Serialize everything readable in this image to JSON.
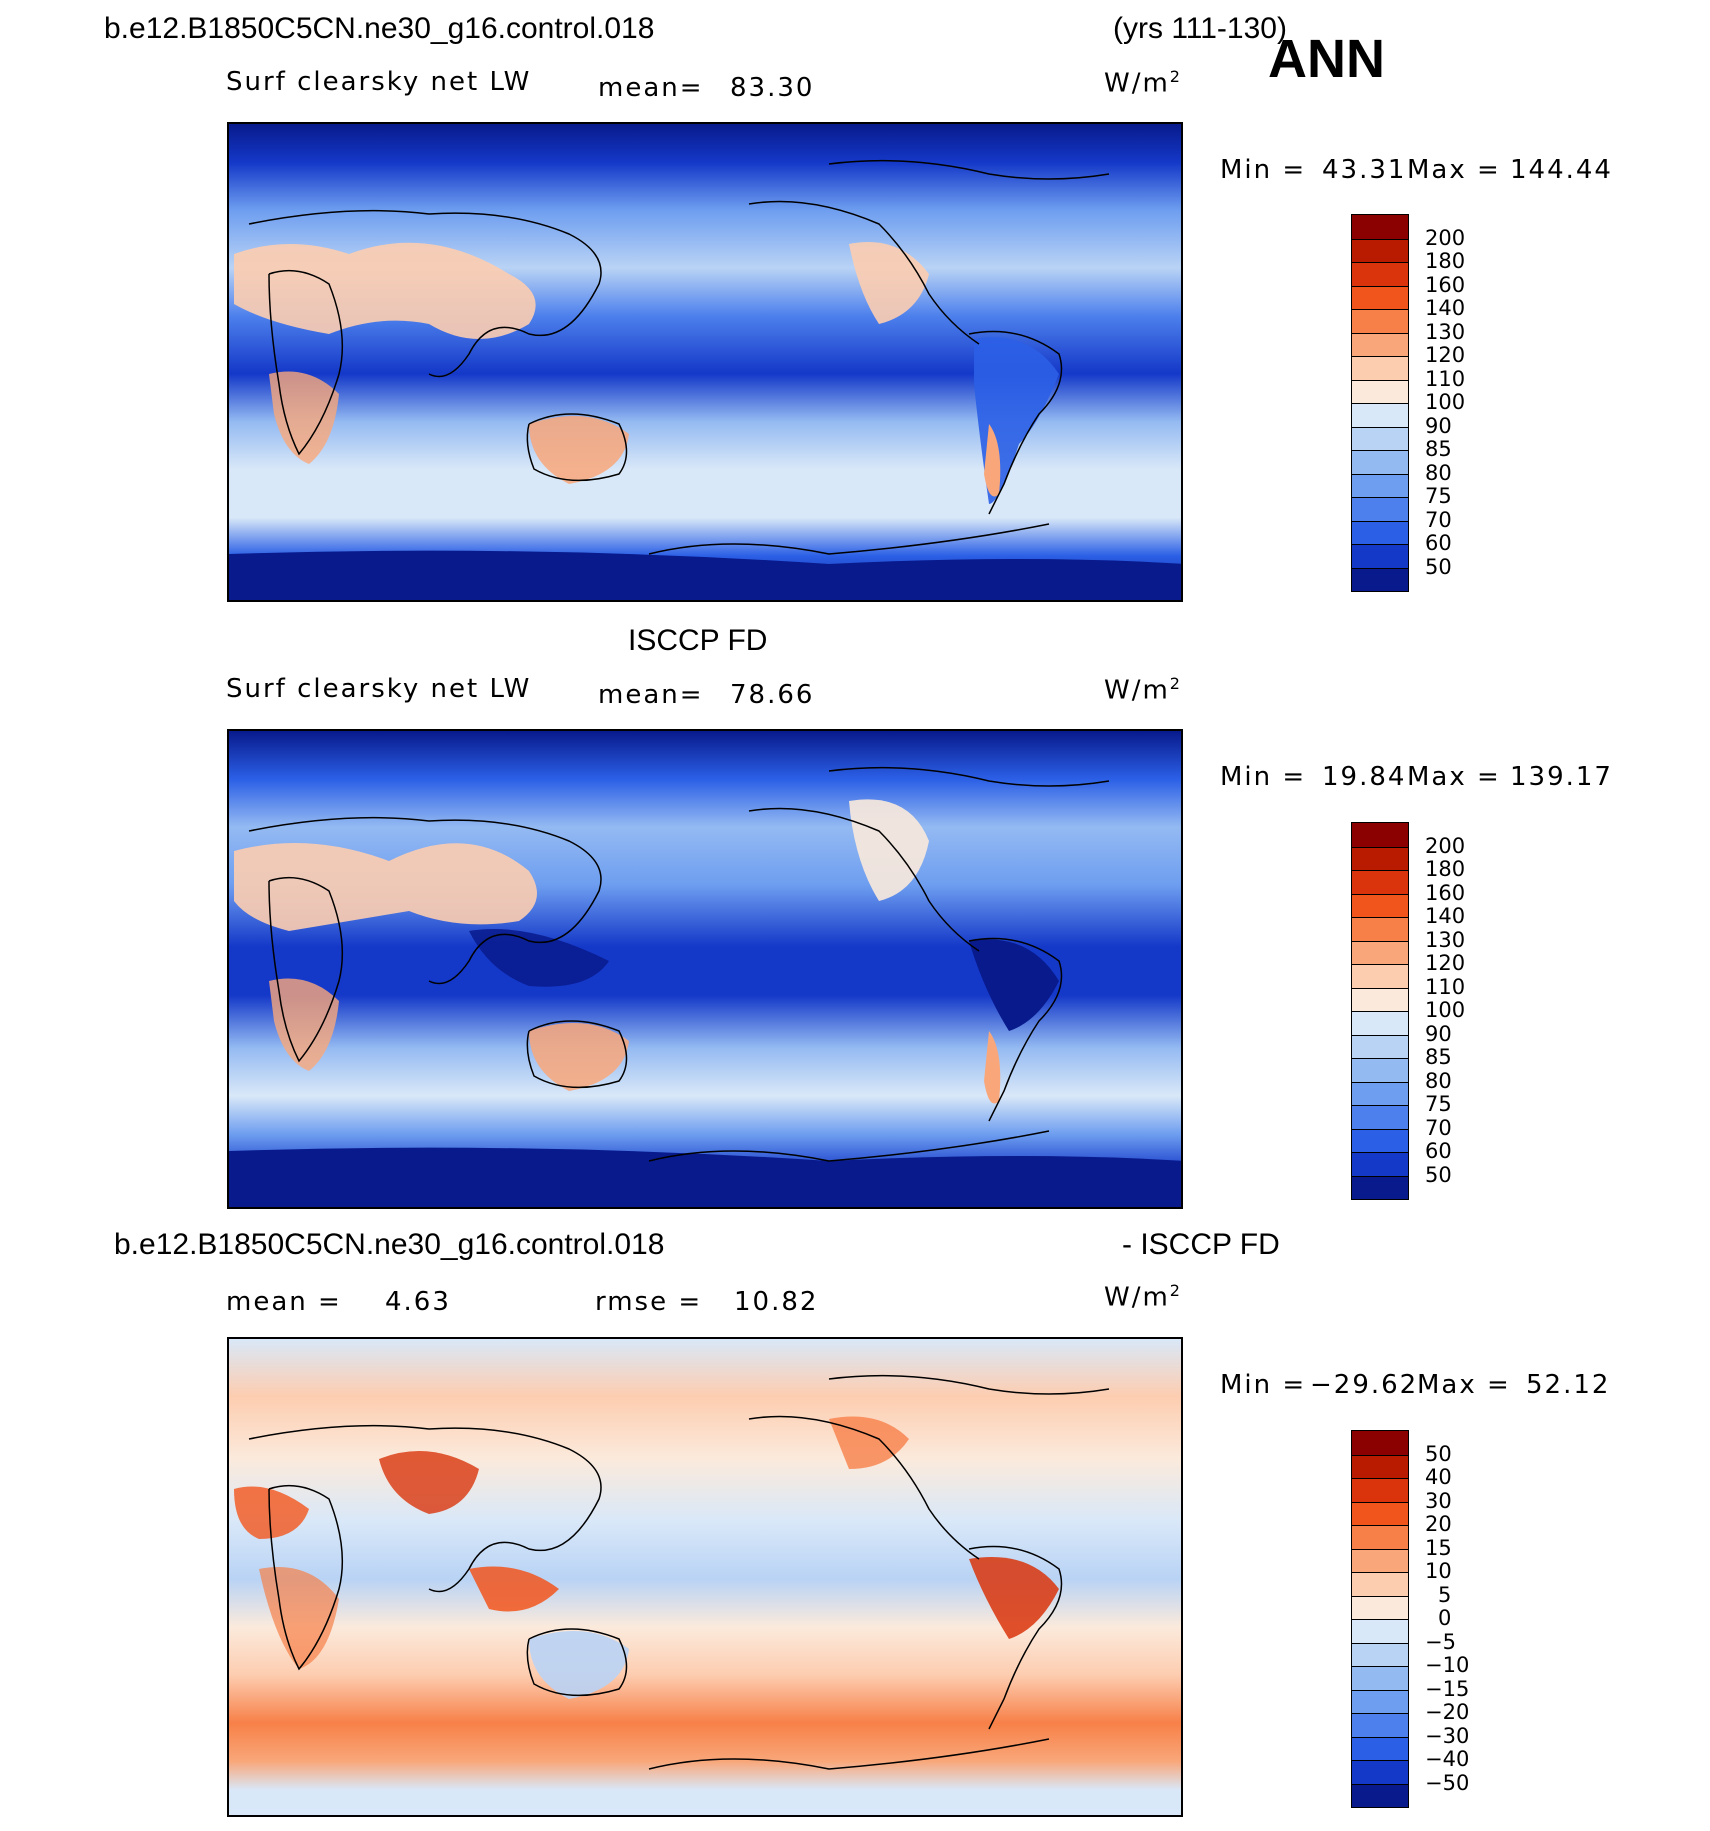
{
  "header": {
    "case_name": "b.e12.B1850C5CN.ne30_g16.control.018",
    "years": "(yrs 111-130)",
    "season": "ANN"
  },
  "panels": [
    {
      "title": "",
      "variable": "Surf clearsky net LW",
      "stat_left_label": "mean=",
      "stat_left_value": "83.30",
      "units": "W/m",
      "units_exp": "2",
      "minmax_label_min": "Min =",
      "min_value": "43.31",
      "minmax_label_max": "Max =",
      "max_value": "144.44",
      "levels": [
        "200",
        "180",
        "160",
        "140",
        "130",
        "120",
        "110",
        "100",
        "90",
        "85",
        "80",
        "75",
        "70",
        "60",
        "50"
      ],
      "colors": [
        "#8b0000",
        "#b81b00",
        "#d9340b",
        "#f2551c",
        "#f78048",
        "#f9a77a",
        "#fdcdb0",
        "#fbeadc",
        "#d9e8f8",
        "#b9d3f5",
        "#94baf2",
        "#6e9ef0",
        "#4d80ec",
        "#2b5fe6",
        "#1438c8",
        "#081a8c"
      ]
    },
    {
      "title": "ISCCP FD",
      "variable": "Surf clearsky net LW",
      "stat_left_label": "mean=",
      "stat_left_value": "78.66",
      "units": "W/m",
      "units_exp": "2",
      "minmax_label_min": "Min =",
      "min_value": "19.84",
      "minmax_label_max": "Max =",
      "max_value": "139.17",
      "levels": [
        "200",
        "180",
        "160",
        "140",
        "130",
        "120",
        "110",
        "100",
        "90",
        "85",
        "80",
        "75",
        "70",
        "60",
        "50"
      ],
      "colors": [
        "#8b0000",
        "#b81b00",
        "#d9340b",
        "#f2551c",
        "#f78048",
        "#f9a77a",
        "#fdcdb0",
        "#fbeadc",
        "#d9e8f8",
        "#b9d3f5",
        "#94baf2",
        "#6e9ef0",
        "#4d80ec",
        "#2b5fe6",
        "#1438c8",
        "#081a8c"
      ]
    },
    {
      "title_left": "b.e12.B1850C5CN.ne30_g16.control.018",
      "title_right": "- ISCCP FD",
      "stat_left_label": "mean =",
      "stat_left_value": "4.63",
      "stat_right_label": "rmse =",
      "stat_right_value": "10.82",
      "units": "W/m",
      "units_exp": "2",
      "minmax_label_min": "Min =",
      "min_value": "−29.62",
      "minmax_label_max": "Max =",
      "max_value": "52.12",
      "levels": [
        "50",
        "40",
        "30",
        "20",
        "15",
        "10",
        "5",
        "0",
        "−5",
        "−10",
        "−15",
        "−20",
        "−30",
        "−40",
        "−50"
      ],
      "colors": [
        "#8b0000",
        "#b81b00",
        "#d9340b",
        "#f2551c",
        "#f78048",
        "#f9a77a",
        "#fdcdb0",
        "#fbeadc",
        "#d9e8f8",
        "#b9d3f5",
        "#94baf2",
        "#6e9ef0",
        "#4d80ec",
        "#2b5fe6",
        "#1438c8",
        "#081a8c"
      ]
    }
  ]
}
